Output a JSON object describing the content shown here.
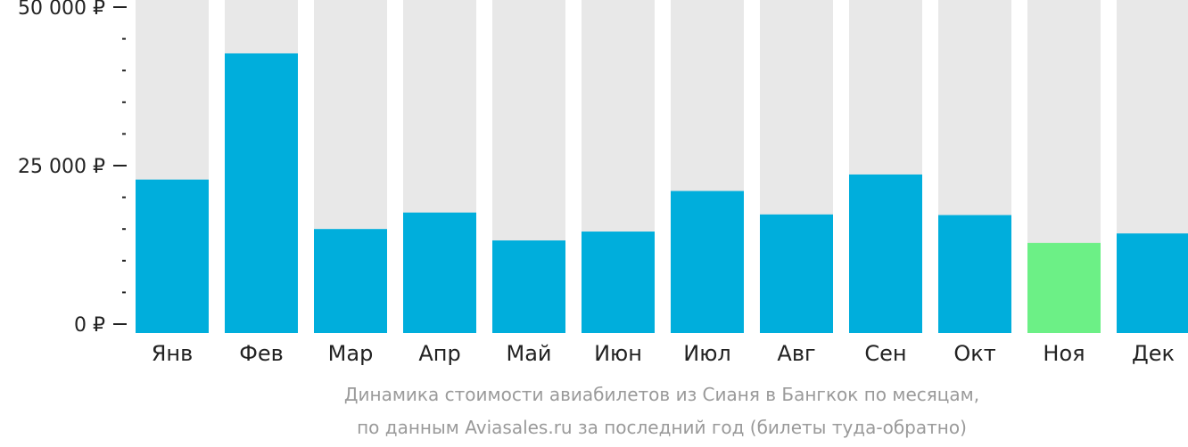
{
  "chart_data": {
    "type": "bar",
    "categories": [
      "Янв",
      "Фев",
      "Мар",
      "Апр",
      "Май",
      "Июн",
      "Июл",
      "Авг",
      "Сен",
      "Окт",
      "Ноя",
      "Дек"
    ],
    "values": [
      22800,
      42700,
      15000,
      17600,
      13200,
      14600,
      21000,
      17300,
      23600,
      17200,
      12800,
      14300
    ],
    "ylim": [
      0,
      50000
    ],
    "yticks": [
      {
        "value": 0,
        "label": "0 ₽"
      },
      {
        "value": 25000,
        "label": "25 000 ₽"
      },
      {
        "value": 50000,
        "label": "50 000 ₽"
      }
    ],
    "minor_tick_step": 5000,
    "highlight_index": 10,
    "colors": {
      "bar": "#00aedc",
      "highlight": "#6cf086",
      "background_bar": "#e8e8e8",
      "axis": "#222222",
      "caption": "#9a9a9a"
    },
    "caption": [
      "Динамика стоимости авиабилетов из Сианя в Бангкок по месяцам,",
      "по данным Aviasales.ru за последний год (билеты туда-обратно)"
    ],
    "grid": false,
    "legend": "none"
  }
}
